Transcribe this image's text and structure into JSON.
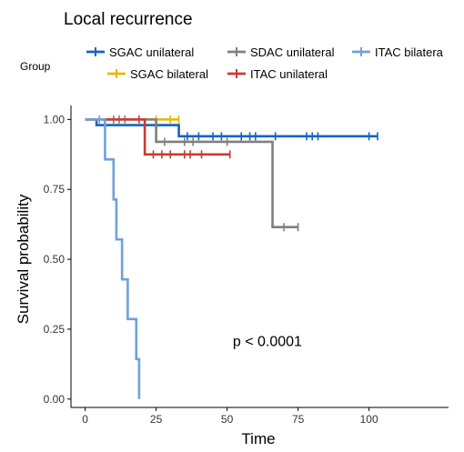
{
  "chart_data": {
    "type": "line",
    "subtype": "kaplan-meier step",
    "title": "Local recurrence",
    "xlabel": "Time",
    "ylabel": "Survival probability",
    "legend_title": "Group",
    "legend_position": "top",
    "xlim": [
      -5,
      128
    ],
    "ylim": [
      -0.03,
      1.05
    ],
    "xticks": [
      0,
      25,
      50,
      75,
      100
    ],
    "yticks": [
      0.0,
      0.25,
      0.5,
      0.75,
      1.0
    ],
    "xtick_labels": [
      "0",
      "25",
      "50",
      "75",
      "100"
    ],
    "ytick_labels": [
      "0.00",
      "0.25",
      "0.50",
      "0.75",
      "1.00"
    ],
    "grid": false,
    "annotation": {
      "text": "p < 0.0001",
      "x": 52,
      "y": 0.19
    },
    "series": [
      {
        "name": "SGAC unilateral",
        "color": "#1565C0",
        "steps": [
          [
            0,
            1.0
          ],
          [
            4,
            0.98
          ],
          [
            33,
            0.94
          ],
          [
            103,
            0.94
          ]
        ],
        "censors": [
          [
            25,
            0.98
          ],
          [
            36,
            0.94
          ],
          [
            40,
            0.94
          ],
          [
            45,
            0.94
          ],
          [
            48,
            0.94
          ],
          [
            55,
            0.94
          ],
          [
            58,
            0.94
          ],
          [
            60,
            0.94
          ],
          [
            67,
            0.94
          ],
          [
            78,
            0.94
          ],
          [
            80,
            0.94
          ],
          [
            82,
            0.94
          ],
          [
            100,
            0.94
          ],
          [
            103,
            0.94
          ]
        ]
      },
      {
        "name": "SGAC bilateral",
        "color": "#E7B800",
        "steps": [
          [
            0,
            1.0
          ],
          [
            33,
            1.0
          ]
        ],
        "censors": [
          [
            25,
            1.0
          ],
          [
            30,
            1.0
          ],
          [
            33,
            1.0
          ]
        ]
      },
      {
        "name": "SDAC unilateral",
        "color": "#7F7F7F",
        "steps": [
          [
            0,
            1.0
          ],
          [
            25,
            0.92
          ],
          [
            66,
            0.615
          ],
          [
            75,
            0.615
          ]
        ],
        "censors": [
          [
            10,
            1.0
          ],
          [
            12,
            1.0
          ],
          [
            14,
            1.0
          ],
          [
            28,
            0.92
          ],
          [
            35,
            0.92
          ],
          [
            38,
            0.92
          ],
          [
            50,
            0.92
          ],
          [
            70,
            0.615
          ],
          [
            75,
            0.615
          ]
        ]
      },
      {
        "name": "ITAC unilateral",
        "color": "#CC3A35",
        "steps": [
          [
            0,
            1.0
          ],
          [
            21,
            0.875
          ],
          [
            51,
            0.875
          ]
        ],
        "censors": [
          [
            19,
            1.0
          ],
          [
            24,
            0.875
          ],
          [
            27,
            0.875
          ],
          [
            30,
            0.875
          ],
          [
            35,
            0.875
          ],
          [
            37,
            0.875
          ],
          [
            41,
            0.875
          ],
          [
            51,
            0.875
          ]
        ]
      },
      {
        "name": "ITAC bilatera",
        "color": "#6FA0DC",
        "steps": [
          [
            0,
            1.0
          ],
          [
            7,
            0.857
          ],
          [
            10,
            0.714
          ],
          [
            11,
            0.571
          ],
          [
            13,
            0.428
          ],
          [
            15,
            0.286
          ],
          [
            18,
            0.143
          ],
          [
            19,
            0.0
          ]
        ],
        "censors": [
          [
            5,
            1.0
          ]
        ]
      }
    ]
  }
}
